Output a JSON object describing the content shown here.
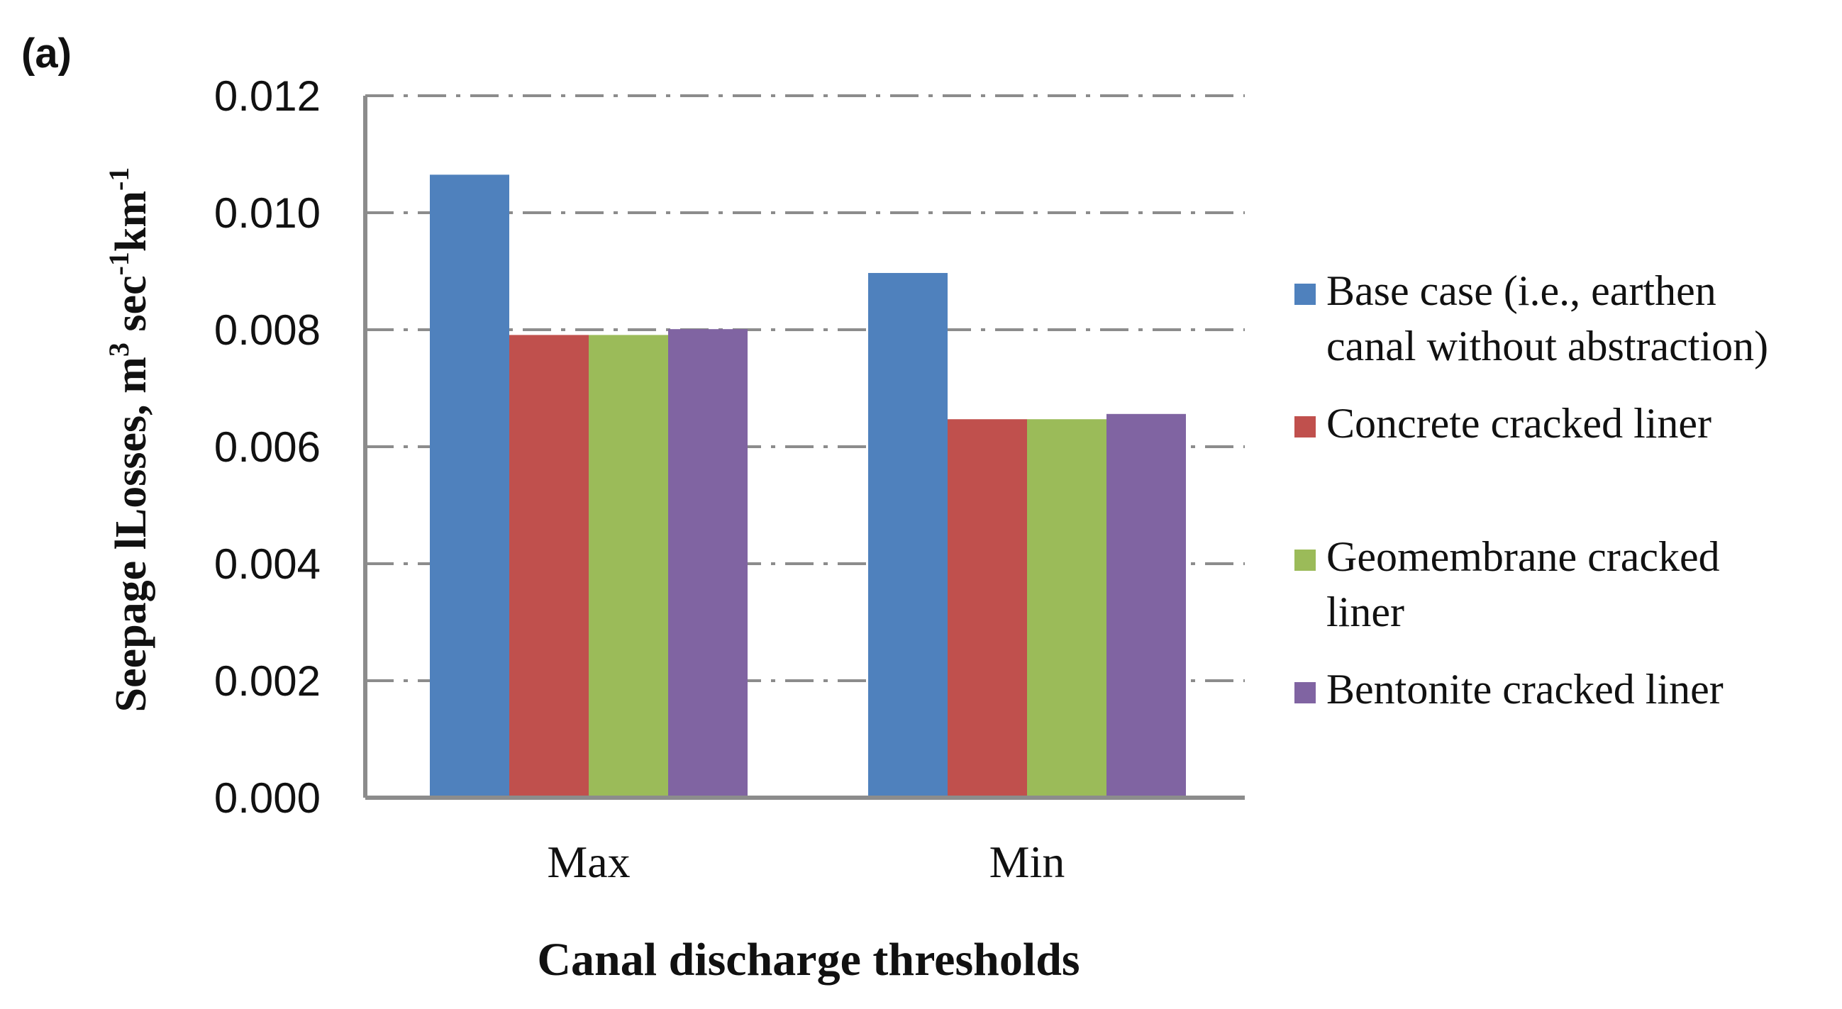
{
  "panel_label": "(a)",
  "chart_data": {
    "type": "bar",
    "title": "",
    "categories": [
      "Max",
      "Min"
    ],
    "series": [
      {
        "name": "Base case (i.e., earthen canal without abstraction)",
        "legend_lines": [
          "Base case (i.e., earthen",
          "canal without abstraction)"
        ],
        "color": "#4F81BD",
        "values": [
          0.01065,
          0.00897
        ]
      },
      {
        "name": "Concrete cracked liner",
        "legend_lines": [
          "Concrete cracked liner"
        ],
        "color": "#C0504D",
        "values": [
          0.00791,
          0.00647
        ]
      },
      {
        "name": "Geomembrane cracked liner",
        "legend_lines": [
          "Geomembrane cracked",
          "liner"
        ],
        "color": "#9BBB59",
        "values": [
          0.00791,
          0.00647
        ]
      },
      {
        "name": "Bentonite cracked liner",
        "legend_lines": [
          "Bentonite cracked liner"
        ],
        "color": "#8064A2",
        "values": [
          0.00801,
          0.00656
        ]
      }
    ],
    "xlabel": "Canal discharge thresholds",
    "ylabel": {
      "prefix": "Seepage lLosses, m",
      "sup1": "3",
      "mid1": " sec",
      "sup2": "-1",
      "mid2": "km",
      "sup3": "-1"
    },
    "ylim": [
      0,
      0.012
    ],
    "yticks": [
      "0.000",
      "0.002",
      "0.004",
      "0.006",
      "0.008",
      "0.010",
      "0.012"
    ],
    "grid": true,
    "legend_position": "right"
  }
}
